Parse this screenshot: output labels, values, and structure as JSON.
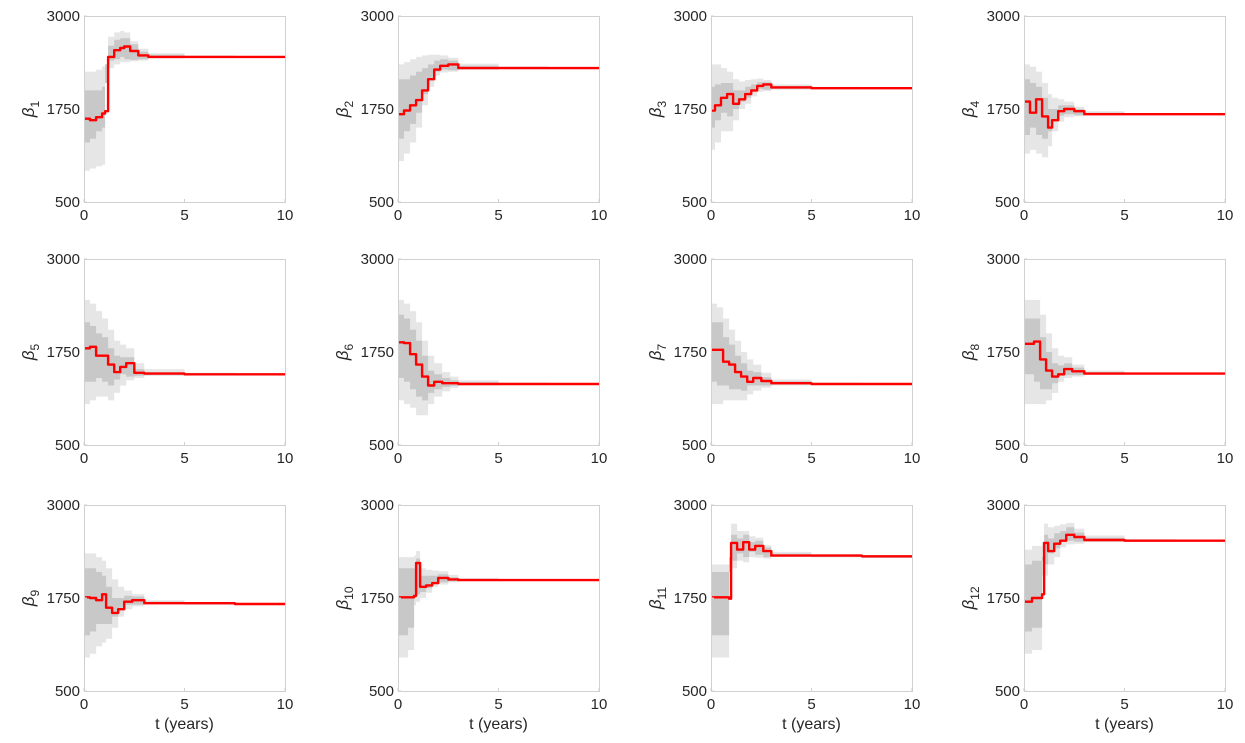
{
  "colors": {
    "median": "#ff0000",
    "band_outer": "#e6e6e6",
    "band_inner": "#c8c8c8",
    "axes": "#d0d0d0"
  },
  "chart_data": [
    {
      "type": "line",
      "ylabel_sym": "β",
      "ylabel_sub": "1",
      "xlabel": "",
      "xlim": [
        0,
        10
      ],
      "ylim": [
        500,
        3000
      ],
      "xticks": [
        "0",
        "5",
        "10"
      ],
      "yticks": [
        "500",
        "1750",
        "3000"
      ],
      "x": [
        0,
        0.3,
        0.6,
        0.9,
        1.05,
        1.2,
        1.5,
        1.8,
        2.0,
        2.3,
        2.7,
        3.2,
        5,
        7.5,
        10
      ],
      "median": [
        1620,
        1600,
        1640,
        1690,
        1720,
        2450,
        2540,
        2570,
        2590,
        2530,
        2470,
        2450,
        2450,
        2450,
        2450
      ],
      "inner_low": [
        1350,
        1300,
        1350,
        1450,
        1500,
        2350,
        2400,
        2420,
        2450,
        2420,
        2410,
        2420,
        2440,
        2445,
        2445
      ],
      "inner_high": [
        2000,
        2000,
        2000,
        2050,
        2100,
        2600,
        2680,
        2700,
        2700,
        2620,
        2520,
        2480,
        2460,
        2455,
        2455
      ],
      "outer_low": [
        950,
        920,
        950,
        980,
        1000,
        2200,
        2300,
        2350,
        2380,
        2380,
        2390,
        2400,
        2430,
        2440,
        2440
      ],
      "outer_high": [
        2250,
        2250,
        2280,
        2320,
        2350,
        2720,
        2780,
        2800,
        2780,
        2660,
        2560,
        2500,
        2470,
        2460,
        2460
      ]
    },
    {
      "type": "line",
      "ylabel_sym": "β",
      "ylabel_sub": "2",
      "xlabel": "",
      "xlim": [
        0,
        10
      ],
      "ylim": [
        500,
        3000
      ],
      "xticks": [
        "0",
        "5",
        "10"
      ],
      "yticks": [
        "500",
        "1750",
        "3000"
      ],
      "x": [
        0,
        0.3,
        0.6,
        0.9,
        1.2,
        1.5,
        1.8,
        2.1,
        2.5,
        3.0,
        5,
        7.5,
        10
      ],
      "median": [
        1680,
        1730,
        1800,
        1870,
        2000,
        2150,
        2280,
        2330,
        2350,
        2300,
        2300,
        2300,
        2300
      ],
      "inner_low": [
        1250,
        1350,
        1450,
        1550,
        1700,
        1950,
        2150,
        2250,
        2280,
        2270,
        2285,
        2290,
        2290
      ],
      "inner_high": [
        2150,
        2150,
        2200,
        2250,
        2300,
        2350,
        2400,
        2420,
        2400,
        2330,
        2315,
        2310,
        2310
      ],
      "outer_low": [
        950,
        1050,
        1150,
        1300,
        1500,
        1800,
        2050,
        2200,
        2240,
        2250,
        2275,
        2285,
        2285
      ],
      "outer_high": [
        2350,
        2380,
        2420,
        2450,
        2470,
        2480,
        2480,
        2470,
        2440,
        2360,
        2325,
        2315,
        2315
      ]
    },
    {
      "type": "line",
      "ylabel_sym": "β",
      "ylabel_sub": "3",
      "xlabel": "",
      "xlim": [
        0,
        10
      ],
      "ylim": [
        500,
        3000
      ],
      "xticks": [
        "0",
        "5",
        "10"
      ],
      "yticks": [
        "500",
        "1750",
        "3000"
      ],
      "x": [
        0,
        0.2,
        0.5,
        0.8,
        1.1,
        1.4,
        1.7,
        2.0,
        2.3,
        2.6,
        3.0,
        5,
        7.5,
        10
      ],
      "median": [
        1730,
        1800,
        1900,
        1950,
        1820,
        1880,
        1950,
        2000,
        2060,
        2080,
        2040,
        2030,
        2030,
        2030
      ],
      "inner_low": [
        1450,
        1500,
        1600,
        1700,
        1650,
        1750,
        1850,
        1900,
        1980,
        2020,
        2010,
        2020,
        2022,
        2022
      ],
      "inner_high": [
        2050,
        2080,
        2100,
        2100,
        2000,
        2000,
        2050,
        2080,
        2110,
        2110,
        2060,
        2040,
        2038,
        2038
      ],
      "outer_low": [
        1150,
        1200,
        1300,
        1450,
        1450,
        1600,
        1750,
        1820,
        1920,
        1980,
        1990,
        2010,
        2018,
        2018
      ],
      "outer_high": [
        2350,
        2350,
        2300,
        2250,
        2150,
        2120,
        2140,
        2150,
        2160,
        2140,
        2080,
        2050,
        2042,
        2042
      ]
    },
    {
      "type": "line",
      "ylabel_sym": "β",
      "ylabel_sub": "4",
      "xlabel": "",
      "xlim": [
        0,
        10
      ],
      "ylim": [
        500,
        3000
      ],
      "xticks": [
        "0",
        "5",
        "10"
      ],
      "yticks": [
        "500",
        "1750",
        "3000"
      ],
      "x": [
        0,
        0.3,
        0.6,
        0.9,
        1.2,
        1.4,
        1.7,
        2.0,
        2.5,
        3.0,
        5,
        7.5,
        10
      ],
      "median": [
        1850,
        1700,
        1880,
        1650,
        1500,
        1600,
        1720,
        1750,
        1720,
        1680,
        1680,
        1680,
        1680
      ],
      "inner_low": [
        1400,
        1400,
        1500,
        1400,
        1350,
        1450,
        1600,
        1660,
        1680,
        1665,
        1672,
        1675,
        1675
      ],
      "inner_high": [
        2150,
        2100,
        2050,
        1900,
        1750,
        1750,
        1800,
        1800,
        1750,
        1700,
        1688,
        1685,
        1685
      ],
      "outer_low": [
        1150,
        1150,
        1200,
        1150,
        1100,
        1250,
        1450,
        1580,
        1640,
        1650,
        1665,
        1670,
        1670
      ],
      "outer_high": [
        2350,
        2320,
        2250,
        2100,
        1950,
        1900,
        1880,
        1850,
        1780,
        1720,
        1695,
        1690,
        1690
      ]
    },
    {
      "type": "line",
      "ylabel_sym": "β",
      "ylabel_sub": "5",
      "xlabel": "",
      "xlim": [
        0,
        10
      ],
      "ylim": [
        500,
        3000
      ],
      "xticks": [
        "0",
        "5",
        "10"
      ],
      "yticks": [
        "500",
        "1750",
        "3000"
      ],
      "x": [
        0,
        0.3,
        0.6,
        0.9,
        1.2,
        1.5,
        1.8,
        2.1,
        2.5,
        3.0,
        5,
        7.5,
        10
      ],
      "median": [
        1800,
        1820,
        1700,
        1700,
        1580,
        1480,
        1550,
        1600,
        1470,
        1460,
        1450,
        1450,
        1450
      ],
      "inner_low": [
        1300,
        1350,
        1350,
        1400,
        1350,
        1300,
        1380,
        1450,
        1420,
        1430,
        1440,
        1443,
        1443
      ],
      "inner_high": [
        2150,
        2100,
        2000,
        1950,
        1800,
        1700,
        1680,
        1680,
        1520,
        1480,
        1460,
        1457,
        1457
      ],
      "outer_low": [
        1000,
        1050,
        1100,
        1150,
        1150,
        1100,
        1200,
        1300,
        1370,
        1400,
        1430,
        1438,
        1438
      ],
      "outer_high": [
        2450,
        2400,
        2300,
        2200,
        2050,
        1900,
        1850,
        1800,
        1600,
        1520,
        1470,
        1462,
        1462
      ]
    },
    {
      "type": "line",
      "ylabel_sym": "β",
      "ylabel_sub": "6",
      "xlabel": "",
      "xlim": [
        0,
        10
      ],
      "ylim": [
        500,
        3000
      ],
      "xticks": [
        "0",
        "5",
        "10"
      ],
      "yticks": [
        "500",
        "1750",
        "3000"
      ],
      "x": [
        0,
        0.3,
        0.6,
        0.9,
        1.2,
        1.5,
        1.8,
        2.2,
        2.6,
        3.0,
        5,
        7.5,
        10
      ],
      "median": [
        1880,
        1870,
        1720,
        1580,
        1420,
        1300,
        1350,
        1330,
        1330,
        1320,
        1320,
        1320,
        1320
      ],
      "inner_low": [
        1400,
        1400,
        1350,
        1250,
        1150,
        1100,
        1200,
        1250,
        1280,
        1295,
        1310,
        1314,
        1314
      ],
      "inner_high": [
        2250,
        2200,
        2050,
        1900,
        1700,
        1500,
        1450,
        1400,
        1370,
        1345,
        1330,
        1326,
        1326
      ],
      "outer_low": [
        1100,
        1100,
        1050,
        1000,
        900,
        900,
        1050,
        1150,
        1220,
        1265,
        1300,
        1310,
        1310
      ],
      "outer_high": [
        2450,
        2400,
        2300,
        2150,
        1900,
        1700,
        1600,
        1480,
        1420,
        1370,
        1340,
        1330,
        1330
      ]
    },
    {
      "type": "line",
      "ylabel_sym": "β",
      "ylabel_sub": "7",
      "xlabel": "",
      "xlim": [
        0,
        10
      ],
      "ylim": [
        500,
        3000
      ],
      "xticks": [
        "0",
        "5",
        "10"
      ],
      "yticks": [
        "500",
        "1750",
        "3000"
      ],
      "x": [
        0,
        0.3,
        0.6,
        0.9,
        1.2,
        1.5,
        1.8,
        2.1,
        2.5,
        3.0,
        5,
        7.5,
        10
      ],
      "median": [
        1780,
        1780,
        1620,
        1580,
        1480,
        1420,
        1350,
        1400,
        1360,
        1330,
        1320,
        1320,
        1320
      ],
      "inner_low": [
        1350,
        1350,
        1300,
        1300,
        1250,
        1250,
        1230,
        1300,
        1300,
        1300,
        1310,
        1314,
        1314
      ],
      "inner_high": [
        2150,
        2150,
        1950,
        1850,
        1700,
        1600,
        1500,
        1480,
        1410,
        1355,
        1330,
        1326,
        1326
      ],
      "outer_low": [
        1050,
        1050,
        1050,
        1100,
        1100,
        1100,
        1100,
        1180,
        1230,
        1270,
        1300,
        1310,
        1310
      ],
      "outer_high": [
        2400,
        2350,
        2200,
        2050,
        1900,
        1750,
        1650,
        1580,
        1470,
        1380,
        1340,
        1330,
        1330
      ]
    },
    {
      "type": "line",
      "ylabel_sym": "β",
      "ylabel_sub": "8",
      "xlabel": "",
      "xlim": [
        0,
        10
      ],
      "ylim": [
        500,
        3000
      ],
      "xticks": [
        "0",
        "5",
        "10"
      ],
      "yticks": [
        "500",
        "1750",
        "3000"
      ],
      "x": [
        0,
        0.5,
        0.8,
        1.1,
        1.4,
        1.7,
        2.0,
        2.4,
        3.0,
        5,
        7.5,
        10
      ],
      "median": [
        1860,
        1890,
        1650,
        1500,
        1420,
        1450,
        1520,
        1490,
        1460,
        1460,
        1460,
        1460
      ],
      "inner_low": [
        1400,
        1450,
        1350,
        1250,
        1250,
        1330,
        1430,
        1440,
        1440,
        1452,
        1455,
        1455
      ],
      "inner_high": [
        2200,
        2200,
        1950,
        1750,
        1600,
        1570,
        1600,
        1540,
        1480,
        1468,
        1465,
        1465
      ],
      "outer_low": [
        1000,
        1050,
        1050,
        1050,
        1100,
        1200,
        1350,
        1400,
        1420,
        1445,
        1450,
        1450
      ],
      "outer_high": [
        2450,
        2450,
        2250,
        2000,
        1800,
        1700,
        1680,
        1580,
        1500,
        1475,
        1470,
        1470
      ]
    },
    {
      "type": "line",
      "ylabel_sym": "β",
      "ylabel_sub": "9",
      "xlabel": "",
      "xlim": [
        0,
        10
      ],
      "ylim": [
        500,
        3000
      ],
      "xticks": [
        "0",
        "5",
        "10"
      ],
      "yticks": [
        "500",
        "1750",
        "3000"
      ],
      "x": [
        0,
        0.3,
        0.6,
        0.9,
        1.1,
        1.4,
        1.7,
        2.0,
        2.4,
        3.0,
        5,
        7.5,
        10
      ],
      "median": [
        1760,
        1750,
        1720,
        1800,
        1620,
        1550,
        1600,
        1700,
        1720,
        1680,
        1680,
        1670,
        1670
      ],
      "inner_low": [
        1250,
        1250,
        1300,
        1400,
        1400,
        1400,
        1500,
        1620,
        1660,
        1660,
        1670,
        1663,
        1663
      ],
      "inner_high": [
        2150,
        2150,
        2100,
        2050,
        1900,
        1750,
        1750,
        1780,
        1770,
        1700,
        1690,
        1677,
        1677
      ],
      "outer_low": [
        900,
        950,
        1000,
        1100,
        1150,
        1200,
        1350,
        1500,
        1600,
        1640,
        1662,
        1658,
        1658
      ],
      "outer_high": [
        2350,
        2350,
        2300,
        2250,
        2150,
        2000,
        1900,
        1850,
        1800,
        1720,
        1698,
        1682,
        1682
      ]
    },
    {
      "type": "line",
      "ylabel_sym": "β",
      "ylabel_sub": "10",
      "xlabel": "",
      "xlim": [
        0,
        10
      ],
      "ylim": [
        500,
        3000
      ],
      "xticks": [
        "0",
        "5",
        "10"
      ],
      "yticks": [
        "500",
        "1750",
        "3000"
      ],
      "x": [
        0,
        0.5,
        0.8,
        0.9,
        1.1,
        1.4,
        1.7,
        2.0,
        2.5,
        3.0,
        5,
        7.5,
        10
      ],
      "median": [
        1760,
        1760,
        1780,
        2220,
        1900,
        1920,
        1950,
        2020,
        2000,
        1990,
        1990,
        1990,
        1990
      ],
      "inner_low": [
        1200,
        1250,
        1350,
        1800,
        1800,
        1830,
        1880,
        1950,
        1960,
        1975,
        1983,
        1985,
        1985
      ],
      "inner_high": [
        2150,
        2150,
        2150,
        2280,
        2050,
        2050,
        2050,
        2070,
        2030,
        2005,
        1997,
        1995,
        1995
      ],
      "outer_low": [
        900,
        950,
        1050,
        1650,
        1700,
        1750,
        1820,
        1900,
        1930,
        1960,
        1978,
        1982,
        1982
      ],
      "outer_high": [
        2300,
        2300,
        2320,
        2380,
        2150,
        2130,
        2120,
        2110,
        2060,
        2020,
        2002,
        1998,
        1998
      ]
    },
    {
      "type": "line",
      "ylabel_sym": "β",
      "ylabel_sub": "11",
      "xlabel": "",
      "xlim": [
        0,
        10
      ],
      "ylim": [
        500,
        3000
      ],
      "xticks": [
        "0",
        "5",
        "10"
      ],
      "yticks": [
        "500",
        "1750",
        "3000"
      ],
      "x": [
        0,
        0.5,
        0.9,
        1.0,
        1.3,
        1.6,
        1.9,
        2.2,
        2.6,
        3.0,
        5,
        7.5,
        10
      ],
      "median": [
        1760,
        1760,
        1740,
        2490,
        2400,
        2500,
        2400,
        2450,
        2380,
        2320,
        2320,
        2310,
        2300
      ],
      "inner_low": [
        1250,
        1250,
        1250,
        2300,
        2250,
        2350,
        2300,
        2370,
        2330,
        2300,
        2310,
        2302,
        2292
      ],
      "inner_high": [
        2100,
        2100,
        2100,
        2600,
        2550,
        2600,
        2500,
        2520,
        2430,
        2345,
        2330,
        2318,
        2308
      ],
      "outer_low": [
        900,
        950,
        950,
        2150,
        2150,
        2250,
        2230,
        2300,
        2290,
        2280,
        2302,
        2296,
        2286
      ],
      "outer_high": [
        2200,
        2200,
        2200,
        2750,
        2650,
        2650,
        2580,
        2560,
        2460,
        2370,
        2340,
        2324,
        2314
      ]
    },
    {
      "type": "line",
      "ylabel_sym": "β",
      "ylabel_sub": "12",
      "xlabel": "",
      "xlim": [
        0,
        10
      ],
      "ylim": [
        500,
        3000
      ],
      "xticks": [
        "0",
        "5",
        "10"
      ],
      "yticks": [
        "500",
        "1750",
        "3000"
      ],
      "x": [
        0,
        0.4,
        0.9,
        1.0,
        1.2,
        1.5,
        1.8,
        2.1,
        2.5,
        3.0,
        5,
        7.5,
        10
      ],
      "median": [
        1700,
        1750,
        1800,
        2490,
        2380,
        2480,
        2520,
        2600,
        2570,
        2530,
        2520,
        2520,
        2520
      ],
      "inner_low": [
        1200,
        1300,
        1350,
        2250,
        2200,
        2350,
        2420,
        2520,
        2520,
        2505,
        2510,
        2514,
        2514
      ],
      "inner_high": [
        2200,
        2250,
        2300,
        2600,
        2550,
        2620,
        2650,
        2700,
        2630,
        2560,
        2532,
        2526,
        2526
      ],
      "outer_low": [
        950,
        1000,
        1050,
        2050,
        2050,
        2200,
        2300,
        2430,
        2470,
        2480,
        2502,
        2508,
        2508
      ],
      "outer_high": [
        2400,
        2450,
        2500,
        2750,
        2700,
        2720,
        2740,
        2760,
        2680,
        2590,
        2540,
        2532,
        2532
      ]
    }
  ],
  "bottom_xlabel": "t (years)"
}
